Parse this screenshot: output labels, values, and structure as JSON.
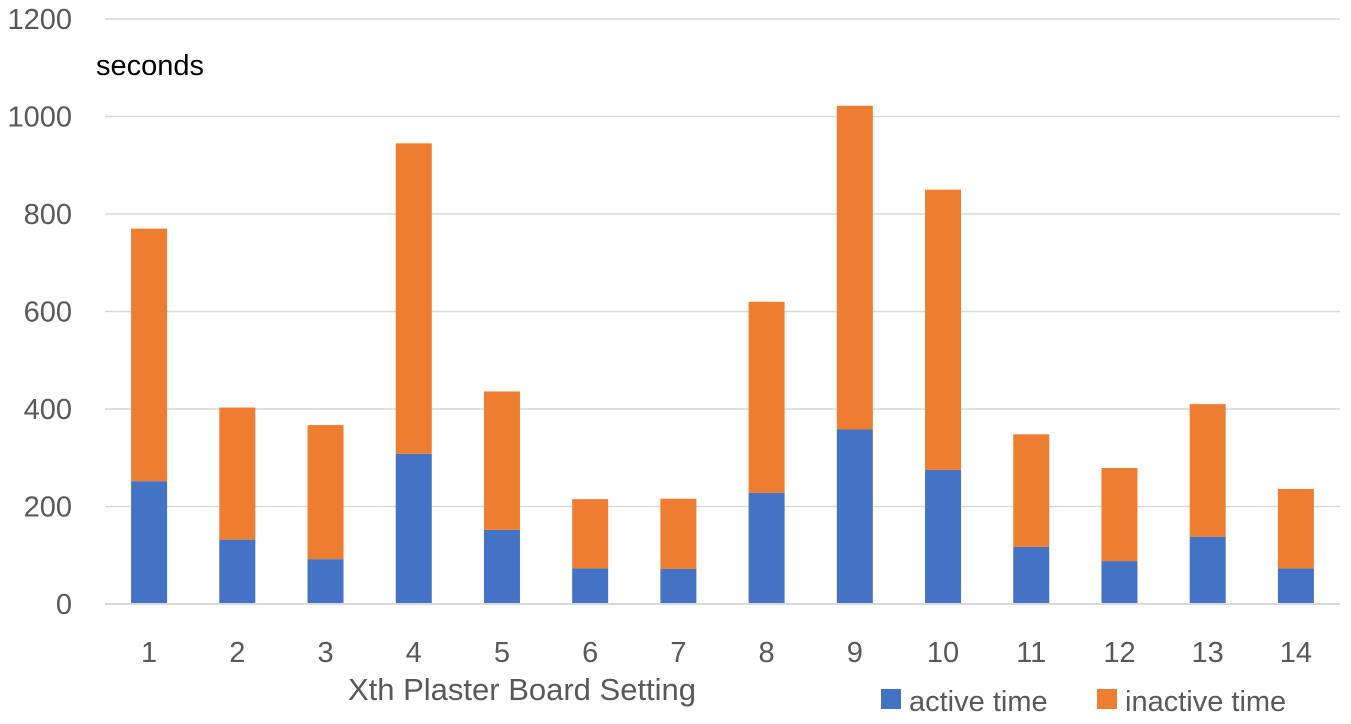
{
  "chart_data": {
    "type": "bar",
    "stacked": true,
    "title": "",
    "xlabel": "Xth Plaster Board Setting",
    "ylabel": "seconds",
    "ylim": [
      0,
      1200
    ],
    "yticks": [
      0,
      200,
      400,
      600,
      800,
      1000,
      1200
    ],
    "grid": true,
    "legend_position": "bottom-right",
    "categories": [
      "1",
      "2",
      "3",
      "4",
      "5",
      "6",
      "7",
      "8",
      "9",
      "10",
      "11",
      "12",
      "13",
      "14"
    ],
    "series": [
      {
        "name": "active time",
        "color": "#4472C4",
        "values": [
          252,
          132,
          92,
          308,
          152,
          73,
          72,
          228,
          358,
          275,
          117,
          88,
          138,
          73
        ]
      },
      {
        "name": "inactive time",
        "color": "#ED7D31",
        "values": [
          518,
          271,
          275,
          637,
          284,
          142,
          144,
          392,
          664,
          575,
          231,
          191,
          272,
          163
        ]
      }
    ]
  }
}
